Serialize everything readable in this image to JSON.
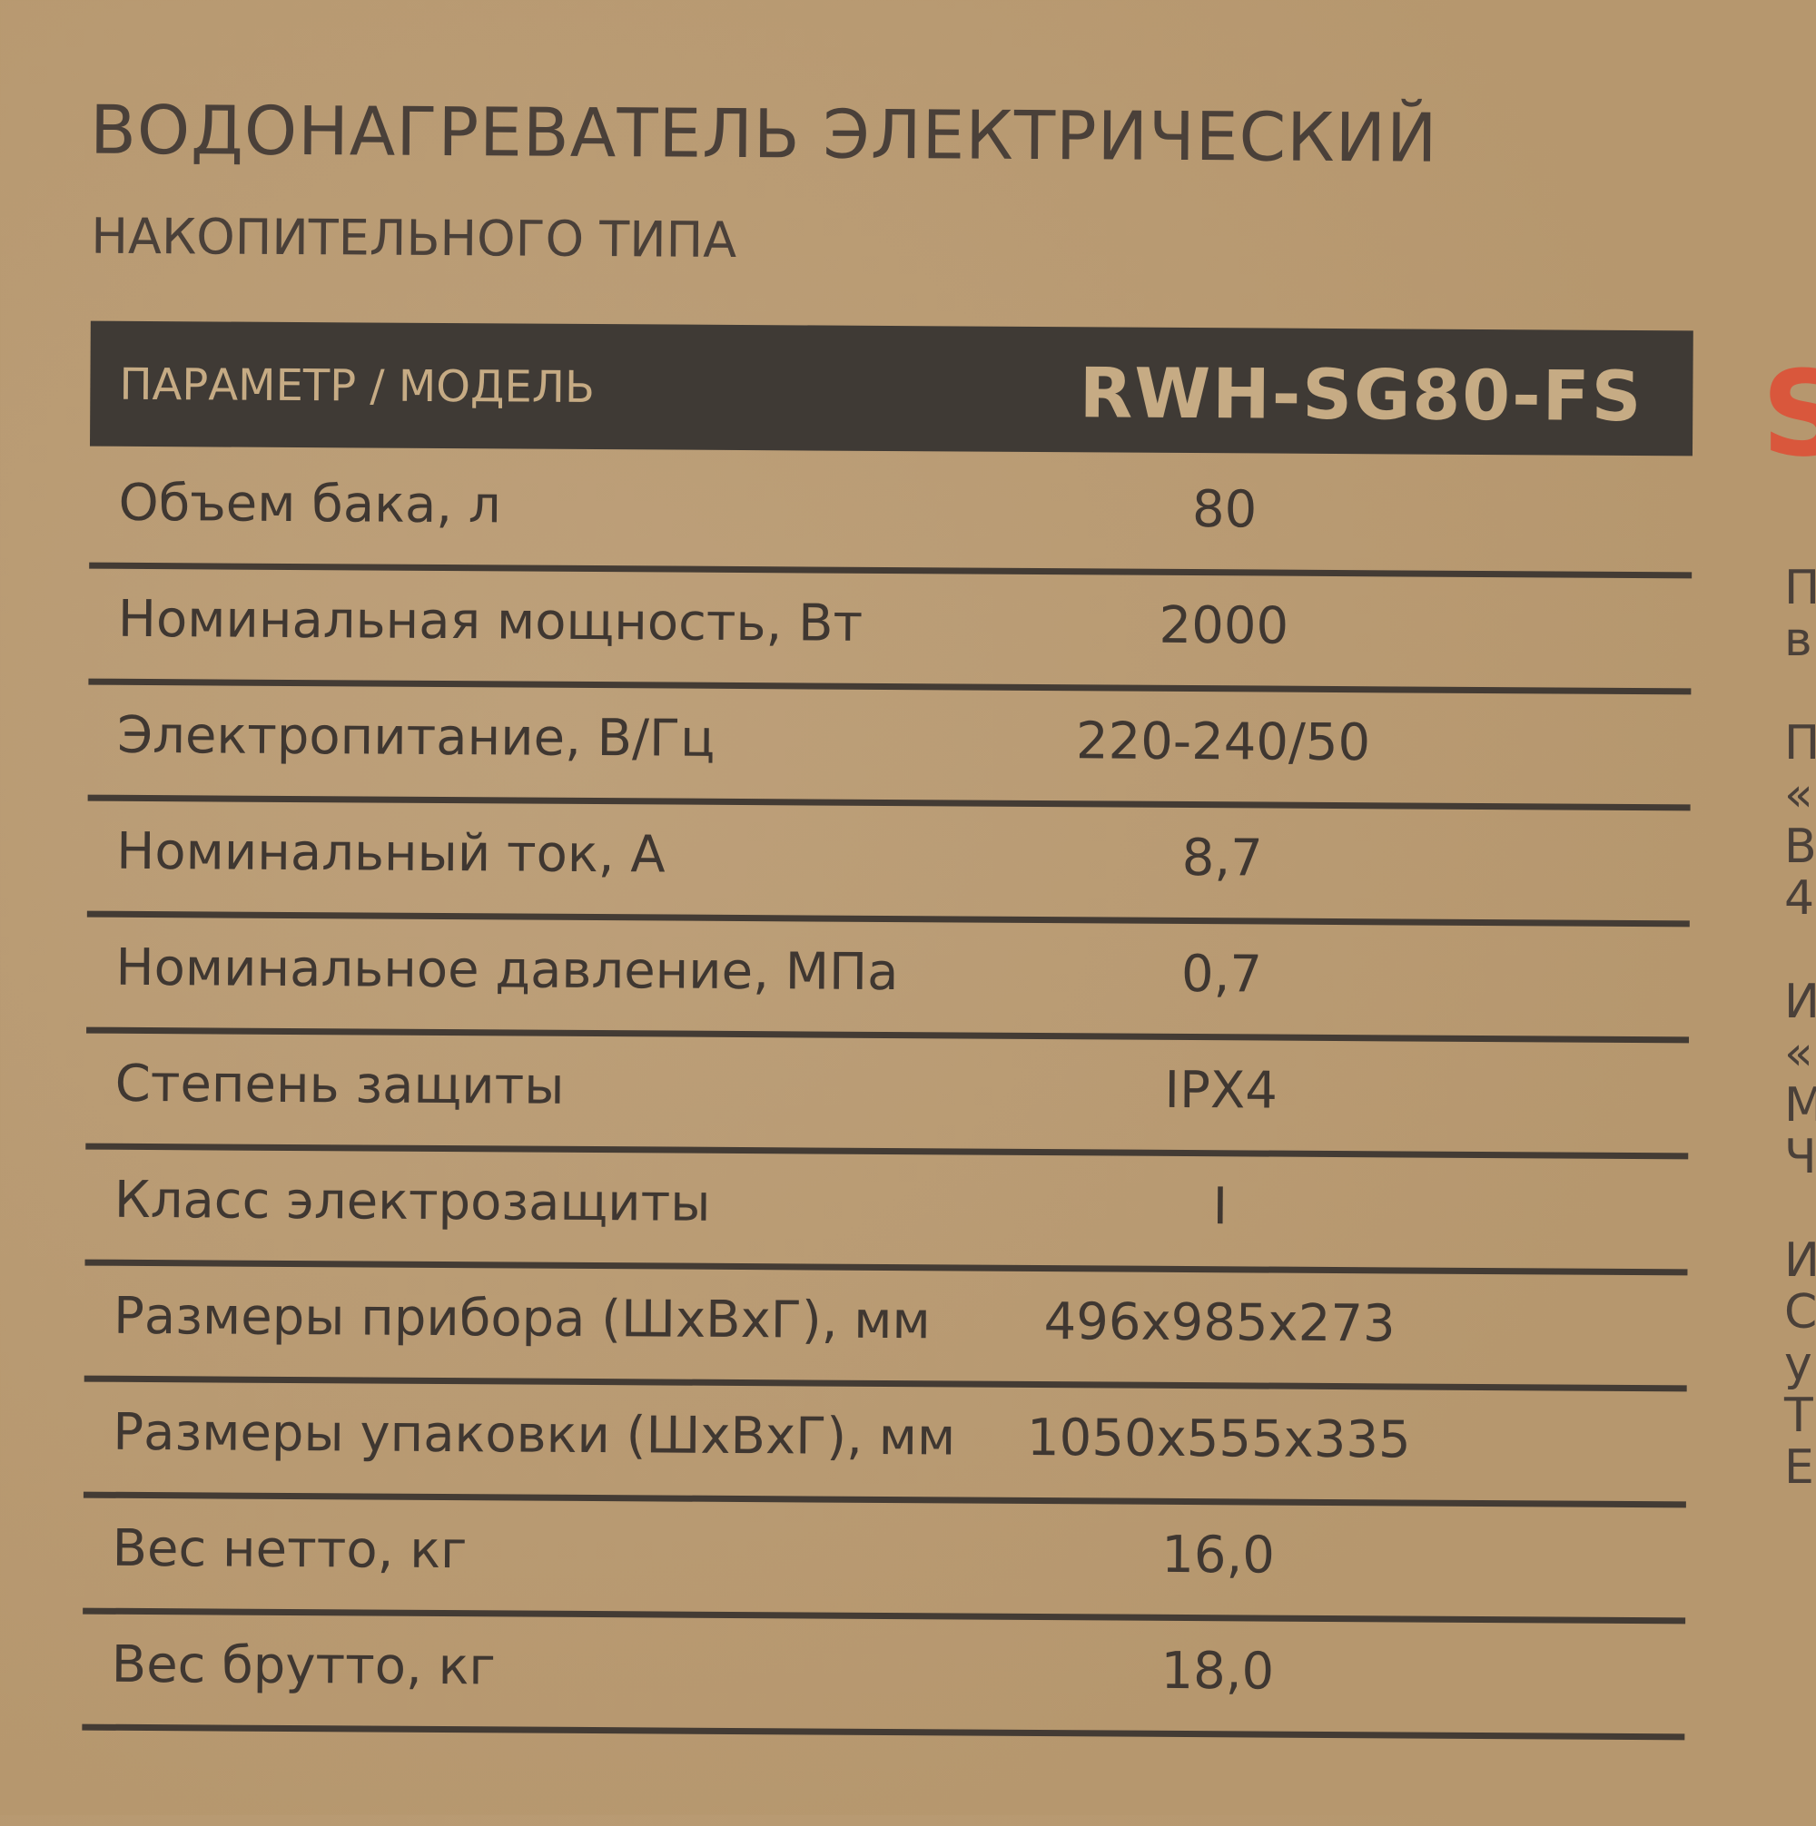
{
  "title": "ВОДОНАГРЕВАТЕЛЬ ЭЛЕКТРИЧЕСКИЙ",
  "subtitle": "НАКОПИТЕЛЬНОГО ТИПА",
  "table": {
    "header": {
      "parameter": "ПАРАМЕТР / МОДЕЛЬ",
      "model": "RWH-SG80-FS"
    },
    "rows": [
      {
        "label": "Объем бака, л",
        "value": "80"
      },
      {
        "label": "Номинальная мощность, Вт",
        "value": "2000"
      },
      {
        "label": "Электропитание, В/Гц",
        "value": "220-240/50"
      },
      {
        "label": "Номинальный ток, А",
        "value": "8,7"
      },
      {
        "label": "Номинальное давление, МПа",
        "value": "0,7"
      },
      {
        "label": "Степень защиты",
        "value": "IPX4"
      },
      {
        "label": "Класс электрозащиты",
        "value": "I"
      },
      {
        "label": "Размеры прибора (ШхВхГ), мм",
        "value": "496х985х273"
      },
      {
        "label": "Размеры упаковки (ШхВхГ), мм",
        "value": "1050х555х335"
      },
      {
        "label": "Вес нетто, кг",
        "value": "16,0"
      },
      {
        "label": "Вес брутто, кг",
        "value": "18,0"
      }
    ]
  },
  "brand_fragment": "S",
  "edge_text": "П\nв\n\nП\n«\nВ\n4\n\nИ\n«\nМ\nЧ\n\nИ\nС\nу\nТ\nЕ",
  "colors": {
    "cardboard": "#b99b73",
    "ink": "#3f3731",
    "brand": "#d9573c"
  }
}
